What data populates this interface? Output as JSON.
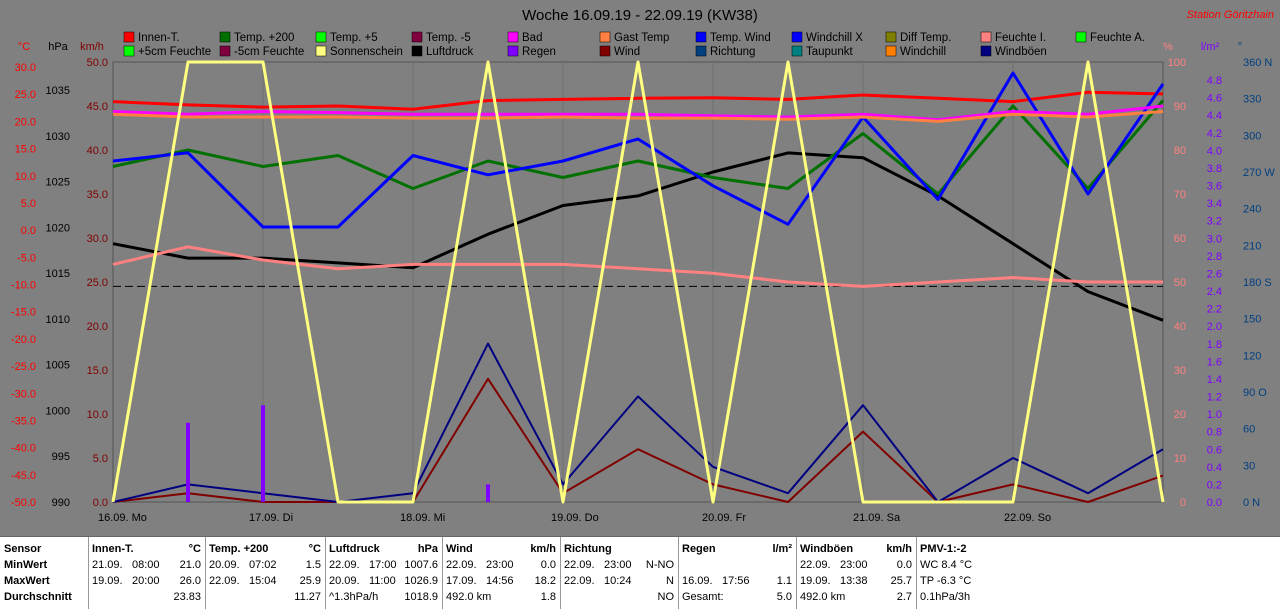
{
  "title": "Woche 16.09.19 - 22.09.19 (KW38)",
  "station": "Station Göritzhain",
  "legend": [
    {
      "label": "Innen-T.",
      "color": "#ff0000"
    },
    {
      "label": "Temp. +200",
      "color": "#007000"
    },
    {
      "label": "Temp. +5",
      "color": "#00ff00"
    },
    {
      "label": "Temp. -5",
      "color": "#800040"
    },
    {
      "label": "Bad",
      "color": "#ff00ff"
    },
    {
      "label": "Gast Temp",
      "color": "#ff8040"
    },
    {
      "label": "Temp. Wind",
      "color": "#0000ff"
    },
    {
      "label": "Windchill X",
      "color": "#0000ff"
    },
    {
      "label": "Diff Temp.",
      "color": "#808000"
    },
    {
      "label": "Feuchte I.",
      "color": "#ff8080"
    },
    {
      "label": "Feuchte A.",
      "color": "#00ff00"
    },
    {
      "label": "+5cm Feuchte",
      "color": "#00ff00"
    },
    {
      "label": "-5cm Feuchte",
      "color": "#800040"
    },
    {
      "label": "Sonnenschein",
      "color": "#ffff80"
    },
    {
      "label": "Luftdruck",
      "color": "#000000"
    },
    {
      "label": "Regen",
      "color": "#8000ff"
    },
    {
      "label": "Wind",
      "color": "#800000"
    },
    {
      "label": "Richtung",
      "color": "#004080"
    },
    {
      "label": "Taupunkt",
      "color": "#008080"
    },
    {
      "label": "Windchill",
      "color": "#ff8000"
    },
    {
      "label": "Windböen",
      "color": "#000080"
    }
  ],
  "axes": {
    "temp": {
      "unit": "°C",
      "ticks": [
        "30.0",
        "25.0",
        "20.0",
        "15.0",
        "10.0",
        "5.0",
        "0.0",
        "-5.0",
        "-10.0",
        "-15.0",
        "-20.0",
        "-25.0",
        "-30.0",
        "-35.0",
        "-40.0",
        "-45.0",
        "-50.0"
      ],
      "color": "#ff0000"
    },
    "pressure": {
      "unit": "hPa",
      "ticks": [
        "1035",
        "1030",
        "1025",
        "1020",
        "1015",
        "1010",
        "1005",
        "1000",
        "995",
        "990"
      ],
      "color": "#000000"
    },
    "wind": {
      "unit": "km/h",
      "ticks": [
        "50.0",
        "45.0",
        "40.0",
        "35.0",
        "30.0",
        "25.0",
        "20.0",
        "15.0",
        "10.0",
        "5.0",
        "0.0"
      ],
      "color": "#800000"
    },
    "humidity": {
      "unit": "%",
      "ticks": [
        "100",
        "90",
        "80",
        "70",
        "60",
        "50",
        "40",
        "30",
        "20",
        "10",
        "0"
      ],
      "color": "#ff8080"
    },
    "rain": {
      "unit": "l/m²",
      "ticks": [
        "4.8",
        "4.6",
        "4.4",
        "4.2",
        "4.0",
        "3.8",
        "3.6",
        "3.4",
        "3.2",
        "3.0",
        "2.8",
        "2.6",
        "2.4",
        "2.2",
        "2.0",
        "1.8",
        "1.6",
        "1.4",
        "1.2",
        "1.0",
        "0.8",
        "0.6",
        "0.4",
        "0.2",
        "0.0"
      ],
      "color": "#8000ff"
    },
    "direction": {
      "unit": "°",
      "ticks": [
        "360 N",
        "330",
        "300",
        "270 W",
        "240",
        "210",
        "180 S",
        "150",
        "120",
        "90 O",
        "60",
        "30",
        "0 N"
      ],
      "color": "#004080"
    }
  },
  "days": [
    "16.09. Mo",
    "17.09. Di",
    "18.09. Mi",
    "19.09. Do",
    "20.09. Fr",
    "21.09. Sa",
    "22.09. So"
  ],
  "chart_data": {
    "type": "line",
    "title": "Woche 16.09.19 - 22.09.19 (KW38)",
    "x": [
      0,
      12,
      24,
      36,
      48,
      60,
      72,
      84,
      96,
      108,
      120,
      132,
      144,
      156,
      168
    ],
    "series": [
      {
        "name": "Innen-T.",
        "axis": "temp",
        "color": "#ff0000",
        "values": [
          22.8,
          22.2,
          21.8,
          22.0,
          21.4,
          23.0,
          23.2,
          23.4,
          23.5,
          23.2,
          24.0,
          23.4,
          22.8,
          24.5,
          24.2
        ]
      },
      {
        "name": "Luftdruck",
        "axis": "pressure",
        "color": "#000000",
        "values": [
          1017.0,
          1015.5,
          1015.5,
          1015.0,
          1014.5,
          1018.0,
          1021.0,
          1022.0,
          1024.5,
          1026.5,
          1026.0,
          1022.0,
          1017.0,
          1012.0,
          1009.0
        ]
      },
      {
        "name": "Feuchte I.",
        "axis": "humidity",
        "color": "#ff8080",
        "values": [
          54,
          58,
          55,
          53,
          54,
          54,
          54,
          53,
          52,
          50,
          49,
          50,
          51,
          50,
          50
        ]
      },
      {
        "name": "Temp. +200",
        "axis": "temp",
        "color": "#007000",
        "values": [
          11.0,
          14.0,
          11.0,
          13.0,
          7.0,
          12.0,
          9.0,
          12.0,
          9.0,
          7.0,
          17.0,
          6.0,
          22.0,
          7.0,
          23.0
        ]
      },
      {
        "name": "Temp. Wind",
        "axis": "temp",
        "color": "#0000ff",
        "values": [
          12.0,
          13.5,
          0.0,
          0.0,
          13.0,
          9.5,
          12.0,
          16.0,
          7.5,
          0.5,
          20.0,
          5.0,
          28.0,
          6.0,
          26.0
        ]
      },
      {
        "name": "Bad",
        "axis": "temp",
        "color": "#ff00ff",
        "values": [
          21.0,
          20.5,
          21.0,
          20.8,
          20.5,
          20.5,
          20.5,
          20.5,
          20.2,
          20.0,
          20.5,
          19.5,
          21.0,
          20.5,
          22.0
        ]
      },
      {
        "name": "Gast Temp",
        "axis": "temp",
        "color": "#ff8040",
        "values": [
          20.5,
          20.0,
          20.0,
          20.0,
          19.8,
          19.8,
          20.0,
          19.8,
          19.8,
          19.6,
          20.0,
          19.2,
          20.5,
          20.0,
          21.0
        ]
      },
      {
        "name": "Wind",
        "axis": "wind",
        "color": "#800000",
        "values": [
          0,
          1,
          0,
          0,
          0,
          14,
          1,
          6,
          2,
          0,
          8,
          0,
          2,
          0,
          3
        ]
      },
      {
        "name": "Windböen",
        "axis": "wind",
        "color": "#000080",
        "values": [
          0,
          2,
          1,
          0,
          1,
          18,
          2,
          12,
          4,
          1,
          11,
          0,
          5,
          1,
          6
        ]
      },
      {
        "name": "Regen",
        "axis": "rain",
        "color": "#8000ff",
        "values": [
          0,
          0.9,
          1.1,
          0,
          0,
          0.2,
          0,
          0,
          0,
          0,
          0,
          0,
          0,
          0,
          0
        ]
      },
      {
        "name": "Sonnenschein",
        "axis": "wind",
        "color": "#ffff80",
        "values": [
          0,
          50,
          50,
          0,
          0,
          50,
          0,
          50,
          0,
          50,
          0,
          0,
          0,
          50,
          0
        ]
      }
    ],
    "ylim_temp": [
      -50,
      30
    ],
    "ylim_pressure": [
      990,
      1036
    ],
    "ylim_wind": [
      0,
      50
    ],
    "reference_line": {
      "label": "dashed",
      "temp": -10.8
    }
  },
  "stats": {
    "labels": {
      "sensor": "Sensor",
      "min": "MinWert",
      "max": "MaxWert",
      "avg": "Durchschnitt"
    },
    "blocks": [
      {
        "name": "Innen-T.",
        "unit": "°C",
        "min_date": "21.09.",
        "min_time": "08:00",
        "min_val": "21.0",
        "max_date": "19.09.",
        "max_time": "20:00",
        "max_val": "26.0",
        "avg_left": "",
        "avg_val": "23.83"
      },
      {
        "name": "Temp. +200",
        "unit": "°C",
        "min_date": "20.09.",
        "min_time": "07:02",
        "min_val": "1.5",
        "max_date": "22.09.",
        "max_time": "15:04",
        "max_val": "25.9",
        "avg_left": "",
        "avg_val": "11.27"
      },
      {
        "name": "Luftdruck",
        "unit": "hPa",
        "min_date": "22.09.",
        "min_time": "17:00",
        "min_val": "1007.6",
        "max_date": "20.09.",
        "max_time": "11:00",
        "max_val": "1026.9",
        "avg_left": "^1.3hPa/h",
        "avg_val": "1018.9"
      },
      {
        "name": "Wind",
        "unit": "km/h",
        "min_date": "22.09.",
        "min_time": "23:00",
        "min_val": "0.0",
        "max_date": "17.09.",
        "max_time": "14:56",
        "max_val": "18.2",
        "avg_left": "492.0 km",
        "avg_val": "1.8"
      },
      {
        "name": "Richtung",
        "unit": "",
        "min_date": "22.09.",
        "min_time": "23:00",
        "min_val": "N-NO",
        "max_date": "22.09.",
        "max_time": "10:24",
        "max_val": "N",
        "avg_left": "",
        "avg_val": "NO"
      },
      {
        "name": "Regen",
        "unit": "l/m²",
        "min_date": "",
        "min_time": "",
        "min_val": "",
        "max_date": "16.09.",
        "max_time": "17:56",
        "max_val": "1.1",
        "avg_left": "Gesamt:",
        "avg_val": "5.0"
      },
      {
        "name": "Windböen",
        "unit": "km/h",
        "min_date": "22.09.",
        "min_time": "23:00",
        "min_val": "0.0",
        "max_date": "19.09.",
        "max_time": "13:38",
        "max_val": "25.7",
        "avg_left": "492.0 km",
        "avg_val": "2.7"
      }
    ],
    "pmv": {
      "title": "PMV-1:-2",
      "line1": "WC 8.4 °C",
      "line2": "TP -6.3 °C",
      "line3": "0.1hPa/3h"
    }
  }
}
